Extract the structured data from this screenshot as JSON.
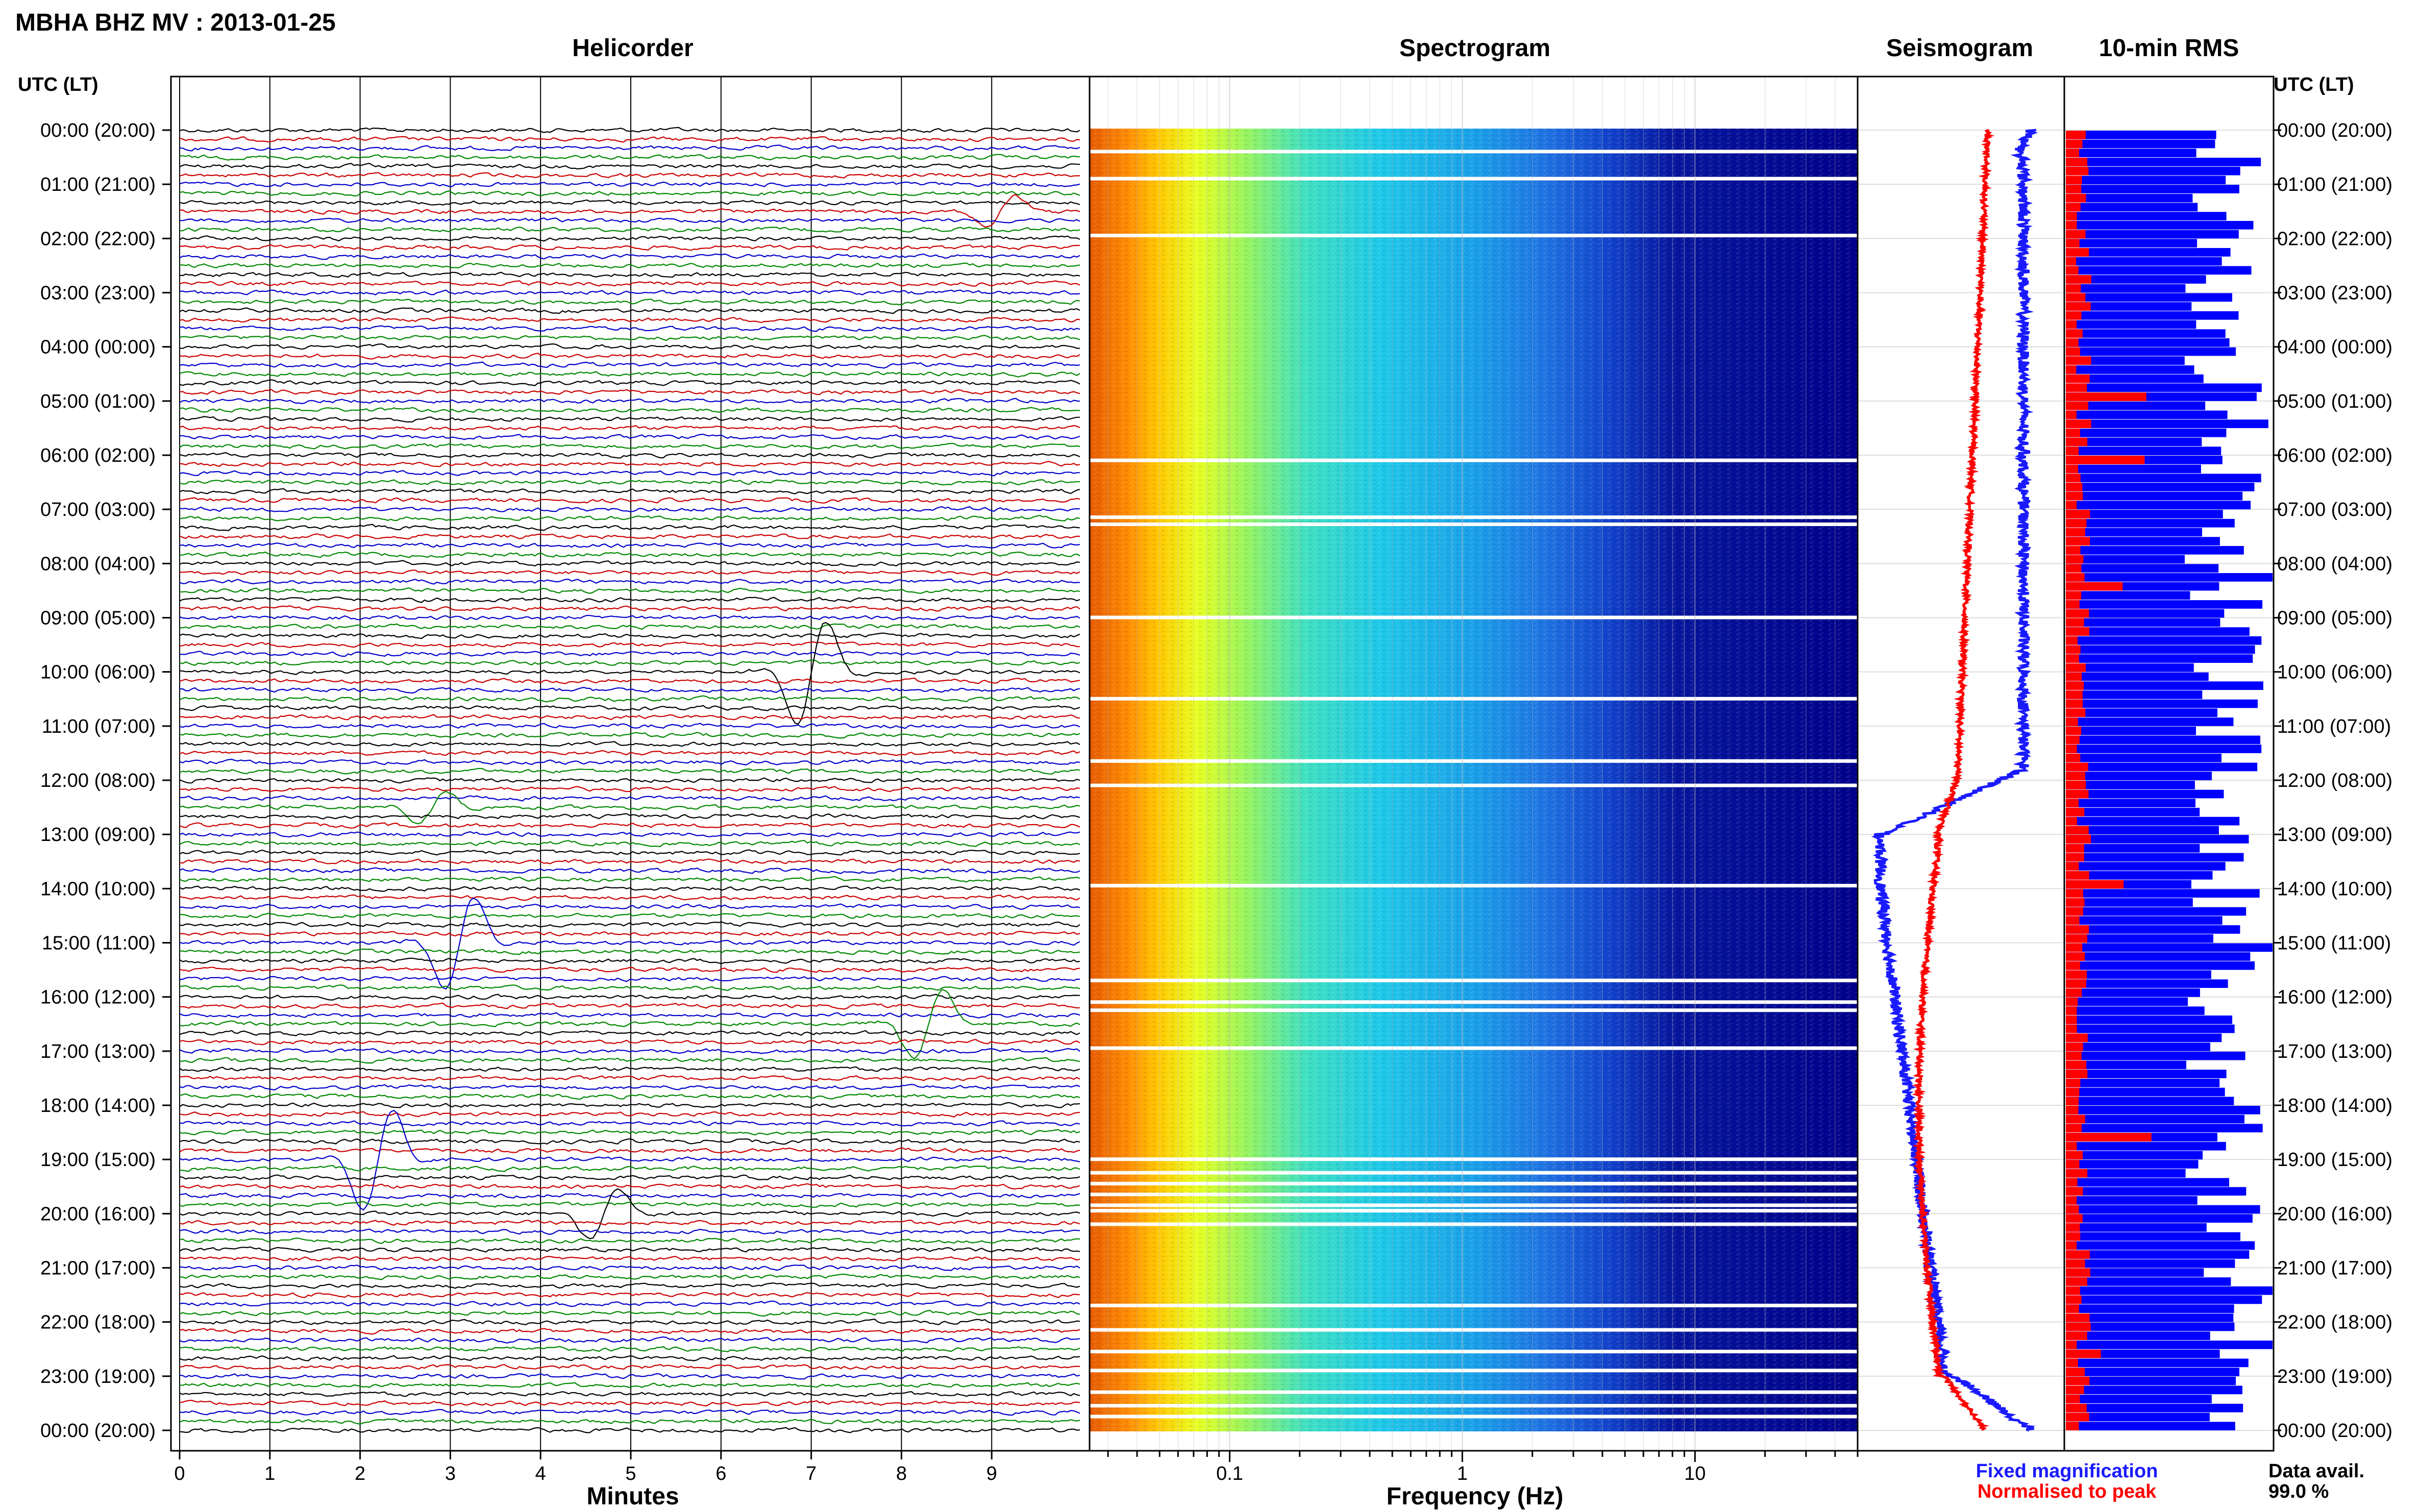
{
  "header": {
    "station_title": "MBHA BHZ MV : 2013-01-25"
  },
  "panels": {
    "helicorder": "Helicorder",
    "spectrogram": "Spectrogram",
    "seismogram": "Seismogram",
    "rms": "10-min RMS"
  },
  "axes": {
    "time_label_left": "UTC (LT)",
    "time_label_right": "UTC (LT)",
    "minutes_label": "Minutes",
    "frequency_label": "Frequency (Hz)"
  },
  "legend": {
    "fixed": "Fixed magnification",
    "normalised": "Normalised to peak",
    "fixed_color": "#1a1aff",
    "normalised_color": "#ff0000",
    "data_avail_label": "Data avail.",
    "data_avail_value": "99.0 %"
  },
  "chart_data": [
    {
      "type": "line",
      "title": "Helicorder",
      "xlabel": "Minutes",
      "ylabel": "UTC (LT)",
      "x_ticks": [
        "0",
        "1",
        "2",
        "3",
        "4",
        "5",
        "6",
        "7",
        "8",
        "9"
      ],
      "xlim": [
        0,
        10
      ],
      "y_ticks": [
        "00:00 (20:00)",
        "01:00 (21:00)",
        "02:00 (22:00)",
        "03:00 (23:00)",
        "04:00 (00:00)",
        "05:00 (01:00)",
        "06:00 (02:00)",
        "07:00 (03:00)",
        "08:00 (04:00)",
        "09:00 (05:00)",
        "10:00 (06:00)",
        "11:00 (07:00)",
        "12:00 (08:00)",
        "13:00 (09:00)",
        "14:00 (10:00)",
        "15:00 (11:00)",
        "16:00 (12:00)",
        "17:00 (13:00)",
        "18:00 (14:00)",
        "19:00 (15:00)",
        "20:00 (16:00)",
        "21:00 (17:00)",
        "22:00 (18:00)",
        "23:00 (19:00)",
        "00:00 (20:00)"
      ],
      "trace_colors": [
        "#000000",
        "#cc0000",
        "#0000cc",
        "#008800"
      ],
      "traces_per_hour": 6,
      "events": [
        {
          "hour": 10.0,
          "minute": 7.0,
          "amp": 1.0
        },
        {
          "hour": 15.0,
          "minute": 3.1,
          "amp": 0.9
        },
        {
          "hour": 16.5,
          "minute": 8.3,
          "amp": 0.7
        },
        {
          "hour": 19.0,
          "minute": 2.2,
          "amp": 1.0
        },
        {
          "hour": 20.0,
          "minute": 4.7,
          "amp": 0.5
        },
        {
          "hour": 12.5,
          "minute": 2.8,
          "amp": 0.3
        },
        {
          "hour": 22.9,
          "minute": 9.0,
          "amp": 0.4
        },
        {
          "hour": 1.5,
          "minute": 9.1,
          "amp": 0.3
        }
      ]
    },
    {
      "type": "heatmap",
      "title": "Spectrogram",
      "xlabel": "Frequency (Hz)",
      "x_scale": "log",
      "x_ticks": [
        "0.1",
        "1",
        "10"
      ],
      "xlim": [
        0.025,
        50
      ],
      "gaps_hours": [
        0.4,
        0.9,
        1.95,
        6.1,
        7.15,
        7.28,
        9.0,
        10.5,
        11.65,
        12.1,
        13.95,
        15.7,
        16.1,
        16.25,
        16.95,
        19.0,
        19.25,
        19.45,
        19.65,
        19.85,
        19.95,
        20.2,
        21.7,
        22.15,
        22.55,
        22.9,
        23.3,
        23.55,
        23.75
      ]
    },
    {
      "type": "line",
      "title": "Seismogram",
      "series": [
        {
          "name": "Fixed magnification",
          "color": "#1a1aff"
        },
        {
          "name": "Normalised to peak",
          "color": "#ff0000"
        }
      ]
    },
    {
      "type": "bar",
      "title": "10-min RMS",
      "series": [
        {
          "name": "Fixed magnification",
          "color": "#0000ff"
        },
        {
          "name": "Normalised to peak",
          "color": "#ff0000"
        }
      ],
      "data_available_percent": 99.0
    }
  ]
}
